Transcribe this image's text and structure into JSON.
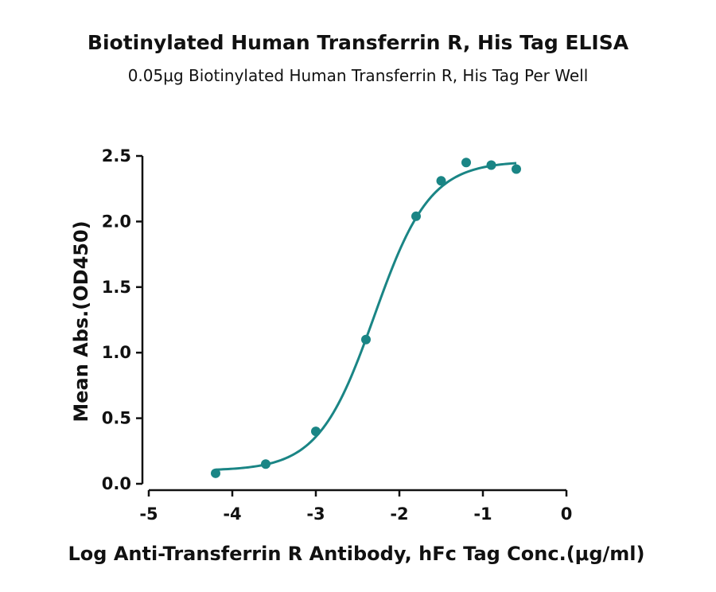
{
  "chart_data": {
    "type": "scatter",
    "title": "Biotinylated Human Transferrin R, His Tag ELISA",
    "subtitle": "0.05μg Biotinylated Human Transferrin R, His Tag Per Well",
    "xlabel": "Log Anti-Transferrin R Antibody, hFc Tag Conc.(μg/ml)",
    "ylabel": "Mean Abs.(OD450)",
    "xlim": [
      -5,
      0
    ],
    "ylim": [
      0,
      2.5
    ],
    "xticks": [
      "-5",
      "-4",
      "-3",
      "-2",
      "-1",
      "0"
    ],
    "yticks": [
      "0.0",
      "0.5",
      "1.0",
      "1.5",
      "2.0",
      "2.5"
    ],
    "grid": false,
    "color": "#1a8585",
    "points": {
      "x": [
        -4.2,
        -3.6,
        -3.0,
        -2.4,
        -1.8,
        -1.5,
        -1.2,
        -0.9,
        -0.6
      ],
      "y": [
        0.08,
        0.15,
        0.4,
        1.1,
        2.04,
        2.31,
        2.45,
        2.43,
        2.4
      ]
    },
    "fit": {
      "model": "4PL",
      "bottom": 0.1,
      "top": 2.46,
      "log_ec50": -2.3,
      "hill_slope": 1.3,
      "x_range": [
        -4.2,
        -0.6
      ]
    }
  }
}
